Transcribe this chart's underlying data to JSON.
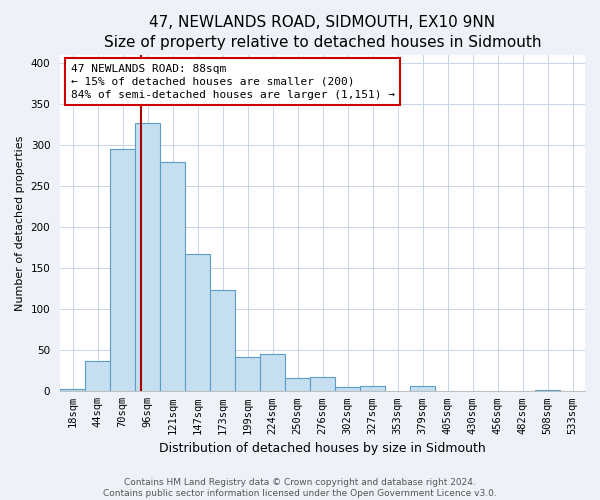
{
  "title": "47, NEWLANDS ROAD, SIDMOUTH, EX10 9NN",
  "subtitle": "Size of property relative to detached houses in Sidmouth",
  "xlabel": "Distribution of detached houses by size in Sidmouth",
  "ylabel": "Number of detached properties",
  "bar_labels": [
    "18sqm",
    "44sqm",
    "70sqm",
    "96sqm",
    "121sqm",
    "147sqm",
    "173sqm",
    "199sqm",
    "224sqm",
    "250sqm",
    "276sqm",
    "302sqm",
    "327sqm",
    "353sqm",
    "379sqm",
    "405sqm",
    "430sqm",
    "456sqm",
    "482sqm",
    "508sqm",
    "533sqm"
  ],
  "bar_values": [
    3,
    37,
    295,
    327,
    280,
    167,
    123,
    42,
    46,
    16,
    18,
    5,
    6,
    0,
    6,
    0,
    0,
    0,
    0,
    2,
    0
  ],
  "bar_color": "#c5dff0",
  "bar_edge_color": "#5b9dc8",
  "vline_color": "#aa0000",
  "annotation_line1": "47 NEWLANDS ROAD: 88sqm",
  "annotation_line2": "← 15% of detached houses are smaller (200)",
  "annotation_line3": "84% of semi-detached houses are larger (1,151) →",
  "annotation_box_color": "#ffffff",
  "annotation_box_edge_color": "#cc0000",
  "ylim": [
    0,
    410
  ],
  "yticks": [
    0,
    50,
    100,
    150,
    200,
    250,
    300,
    350,
    400
  ],
  "footnote": "Contains HM Land Registry data © Crown copyright and database right 2024.\nContains public sector information licensed under the Open Government Licence v3.0.",
  "background_color": "#eef2f8",
  "plot_bg_color": "#ffffff",
  "title_fontsize": 11,
  "xlabel_fontsize": 9,
  "ylabel_fontsize": 8,
  "tick_fontsize": 7.5,
  "annotation_fontsize": 8,
  "footnote_fontsize": 6.5,
  "vline_bar_index": 2.72
}
